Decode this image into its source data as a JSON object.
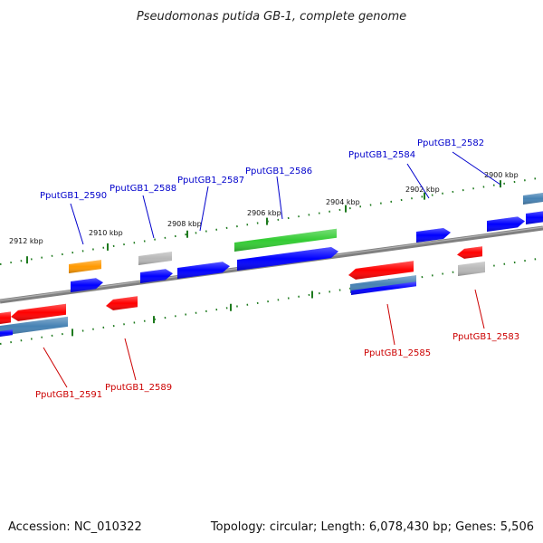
{
  "title": "Pseudomonas putida GB-1, complete genome",
  "footer": {
    "accession": "Accession: NC_010322",
    "summary": "Topology: circular; Length: 6,078,430 bp; Genes: 5,506"
  },
  "colors": {
    "backbone": "#808080",
    "tick": "#1e7a1e",
    "forward_label": "#0000cc",
    "reverse_label": "#cc0000",
    "red": "#ff0000",
    "blue": "#0000ff",
    "gray": "#b8b8b8",
    "orange": "#ff9900",
    "green": "#33cc33",
    "steelblue": "#4682b4"
  },
  "ticks": [
    "2900 kbp",
    "2902 kbp",
    "2904 kbp",
    "2906 kbp",
    "2908 kbp",
    "2910 kbp",
    "2912 kbp"
  ],
  "forward_labels": [
    "PputGB1_2582",
    "PputGB1_2584",
    "PputGB1_2586",
    "PputGB1_2587",
    "PputGB1_2588",
    "PputGB1_2590"
  ],
  "reverse_labels": [
    "PputGB1_2583",
    "PputGB1_2585",
    "PputGB1_2589",
    "PputGB1_2591"
  ]
}
